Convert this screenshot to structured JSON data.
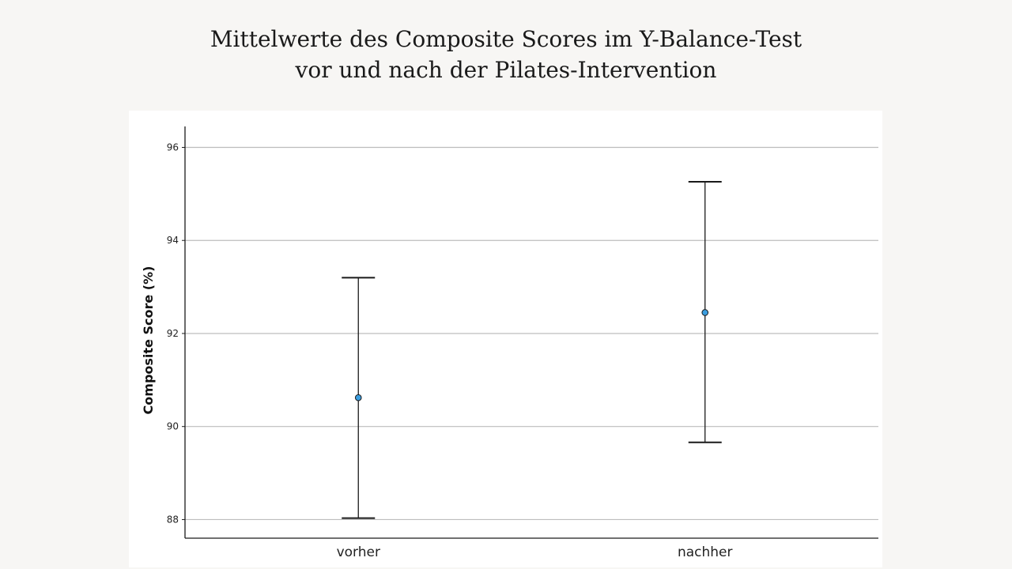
{
  "title": {
    "line1": "Mittelwerte des Composite Scores im Y-Balance-Test",
    "line2": "vor und nach der Pilates-Intervention"
  },
  "chart_data": {
    "type": "errorbar",
    "title": "Mittelwerte des Composite Scores im Y-Balance-Test vor und nach der Pilates-Intervention",
    "ylabel": "Composite Score (%)",
    "xlabel": "",
    "ylim": [
      87.6,
      96.45
    ],
    "yticks": [
      88,
      90,
      92,
      94,
      96
    ],
    "grid": true,
    "categories": [
      "vorher",
      "nachher"
    ],
    "series": [
      {
        "mean": [
          90.62,
          92.45
        ],
        "lower": [
          88.03,
          89.66
        ],
        "upper": [
          93.2,
          95.26
        ]
      }
    ],
    "colors": {
      "marker": "#3b9ee0",
      "marker_edge": "#1a1a1a",
      "errorbar": "#1a1a1a",
      "grid": "#bdbdbd",
      "axis": "#1a1a1a"
    }
  }
}
